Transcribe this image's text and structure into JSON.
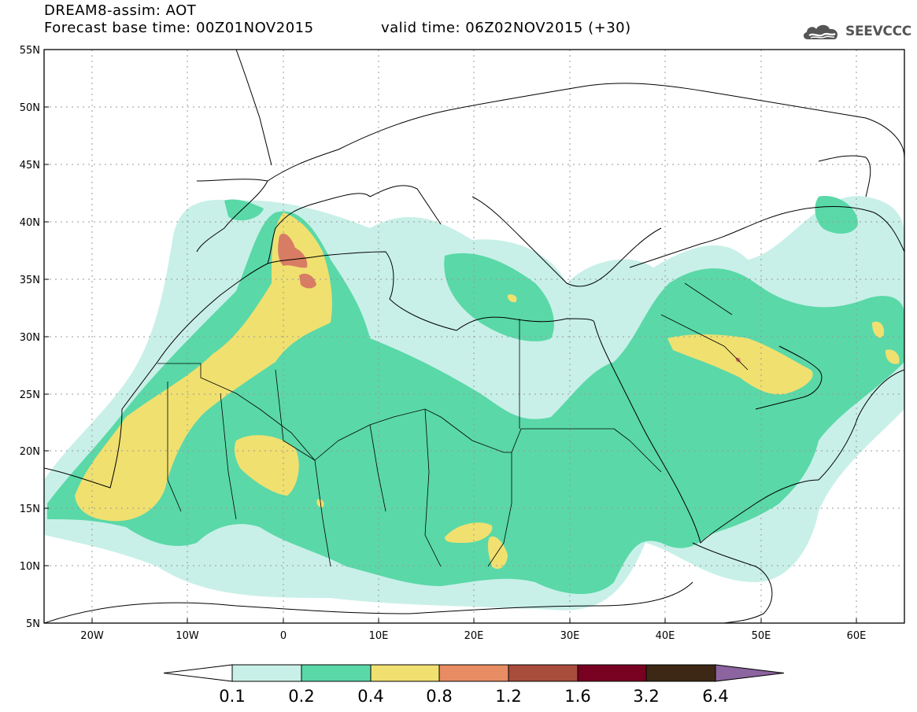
{
  "header": {
    "title": "DREAM8-assim: AOT",
    "base_time": "Forecast base time: 00Z01NOV2015",
    "valid_time": "valid time: 06Z02NOV2015 (+30)"
  },
  "logo": {
    "text": "SEEVCCC",
    "icon": "cloud-icon"
  },
  "map": {
    "lat_labels": [
      "55N",
      "50N",
      "45N",
      "40N",
      "35N",
      "30N",
      "25N",
      "20N",
      "15N",
      "10N",
      "5N"
    ],
    "lon_labels": [
      "20W",
      "10W",
      "0",
      "10E",
      "20E",
      "30E",
      "40E",
      "50E",
      "60E"
    ],
    "lat_range": [
      5,
      55
    ],
    "lon_range": [
      -25,
      65
    ]
  },
  "colorbar": {
    "labels": [
      "0.1",
      "0.2",
      "0.4",
      "0.8",
      "1.2",
      "1.6",
      "3.2",
      "6.4"
    ],
    "colors": [
      "#c8f0e8",
      "#5ad8a8",
      "#f0e070",
      "#e88c64",
      "#a84c3c",
      "#780020",
      "#3c2814",
      "#8c64a0"
    ]
  }
}
